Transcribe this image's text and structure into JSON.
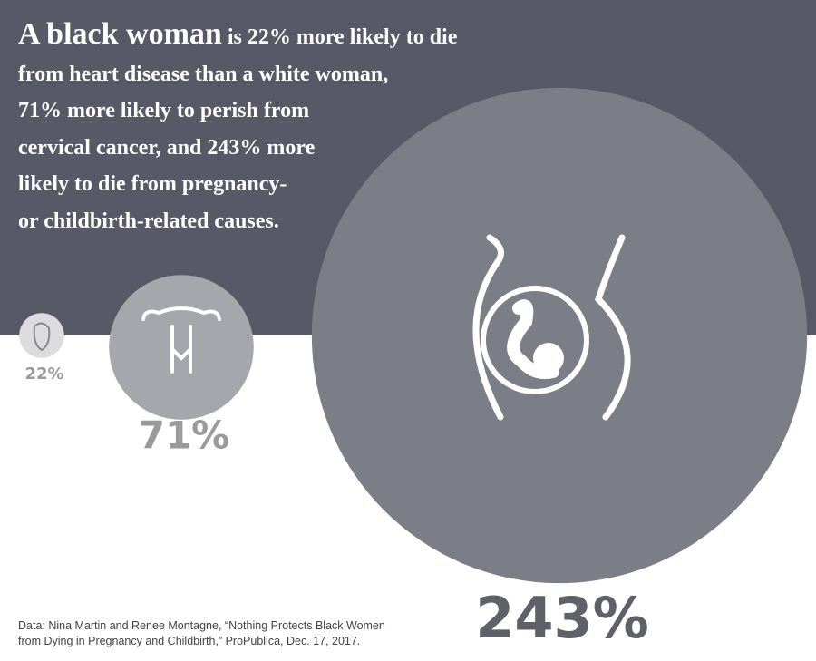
{
  "chart_data": {
    "type": "bubble",
    "title": {
      "lead": "A black woman",
      "lines": [
        "is 22% more likely to die",
        "from heart disease than a white woman,",
        "71% more likely to perish from",
        "cervical cancer, and 243% more",
        "likely to die from pregnancy-",
        "or childbirth-related causes."
      ]
    },
    "values": [
      22,
      71,
      243
    ],
    "value_labels": [
      "22%",
      "71%",
      "243%"
    ],
    "colors": [
      "#dcdcdf",
      "#a6a7ac",
      "#7c7e87"
    ],
    "source": [
      "Data: Nina Martin and Renee Montagne, “Nothing Protects Black Women",
      "from Dying in Pregnancy and Childbirth,” ProPublica, Dec. 17, 2017."
    ]
  }
}
